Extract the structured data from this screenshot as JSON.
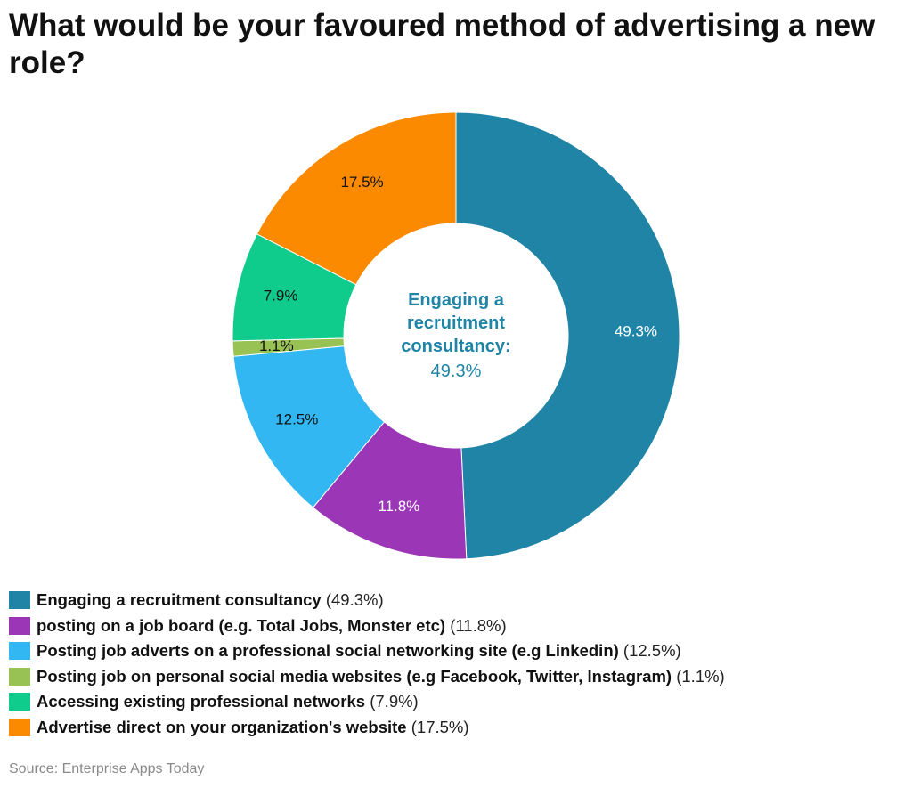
{
  "title": "What would be your favoured method of advertising a new role?",
  "source": "Source: Enterprise Apps Today",
  "chart_data": {
    "type": "pie",
    "donut": true,
    "center_label": {
      "category": "Engaging a recruitment consultancy:",
      "value": "49.3%"
    },
    "categories": [
      "Engaging a recruitment consultancy",
      "posting on a job board (e.g. Total Jobs, Monster etc)",
      "Posting job adverts on a professional social networking site (e.g Linkedin)",
      "Posting job on personal social media websites (e.g Facebook, Twitter, Instagram)",
      "Accessing existing professional networks",
      "Advertise direct on your organization's website"
    ],
    "values": [
      49.3,
      11.8,
      12.5,
      1.1,
      7.9,
      17.5
    ],
    "data_labels": [
      "49.3%",
      "11.8%",
      "12.5%",
      "1.1%",
      "7.9%",
      "17.5%"
    ],
    "legend_values": [
      "(49.3%)",
      "(11.8%)",
      "(12.5%)",
      "(1.1%)",
      "(7.9%)",
      "(17.5%)"
    ],
    "colors": [
      "#1f84a6",
      "#9b36b7",
      "#33b7f2",
      "#99c255",
      "#10cc8c",
      "#fb8a00"
    ],
    "label_colors": [
      "#ffffff",
      "#ffffff",
      "#111111",
      "#111111",
      "#111111",
      "#111111"
    ],
    "center_color": "#1f84a6",
    "legend_position": "bottom"
  }
}
